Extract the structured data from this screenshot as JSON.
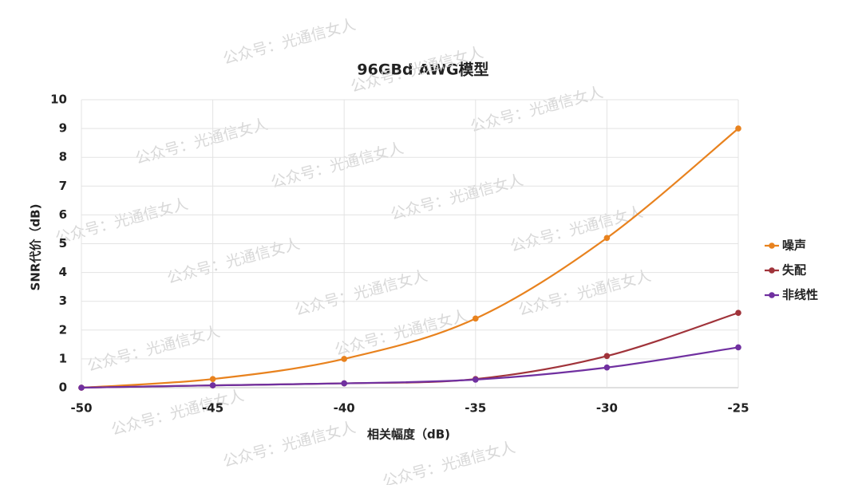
{
  "chart_data": {
    "type": "line",
    "title": "96GBd AWG模型",
    "x_label": "相关幅度（dB)",
    "y_label": "SNR代价（dB)",
    "watermark": "公众号：光通信女人",
    "x": [
      -50,
      -45,
      -40,
      -35,
      -30,
      -25
    ],
    "series": [
      {
        "name": "噪声",
        "color": "#e8821e",
        "values": [
          0,
          0.3,
          1.0,
          2.4,
          5.2,
          9.0
        ]
      },
      {
        "name": "失配",
        "color": "#a0333a",
        "values": [
          0,
          0.08,
          0.15,
          0.3,
          1.1,
          2.6
        ]
      },
      {
        "name": "非线性",
        "color": "#7030a0",
        "values": [
          0,
          0.08,
          0.15,
          0.28,
          0.7,
          1.4
        ]
      }
    ],
    "xlim": [
      -50,
      -25
    ],
    "xticks": [
      -50,
      -45,
      -40,
      -35,
      -30,
      -25
    ],
    "ylim": [
      0,
      10
    ],
    "yticks": [
      0,
      1,
      2,
      3,
      4,
      5,
      6,
      7,
      8,
      9,
      10
    ],
    "grid": true,
    "legend": "right",
    "smooth": true
  }
}
